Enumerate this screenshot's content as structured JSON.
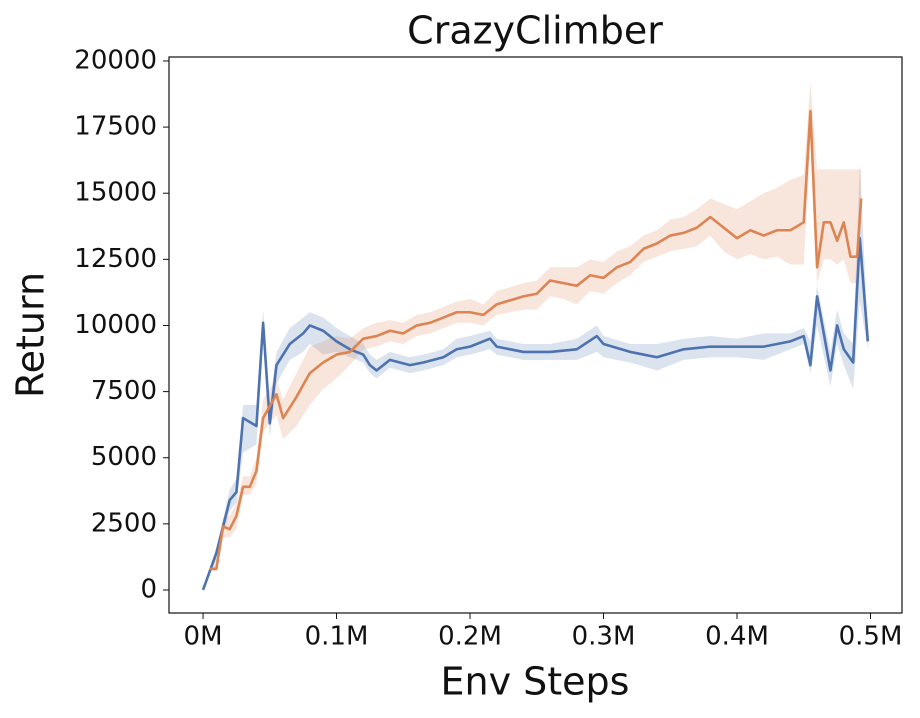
{
  "chart_data": {
    "type": "line",
    "title": "CrazyClimber",
    "x_label": "Env Steps",
    "y_label": "Return",
    "xlim": [
      -25500,
      523600
    ],
    "ylim": [
      -870,
      20150
    ],
    "xticks": [
      {
        "value": 0,
        "label": "0M"
      },
      {
        "value": 100000,
        "label": "0.1M"
      },
      {
        "value": 200000,
        "label": "0.2M"
      },
      {
        "value": 300000,
        "label": "0.3M"
      },
      {
        "value": 400000,
        "label": "0.4M"
      },
      {
        "value": 500000,
        "label": "0.5M"
      }
    ],
    "yticks": [
      0,
      2500,
      5000,
      7500,
      10000,
      12500,
      15000,
      17500,
      20000
    ],
    "grid": false,
    "series": [
      {
        "color": "#4c72b0",
        "x": [
          0,
          10000,
          20000,
          25000,
          30000,
          40000,
          45000,
          50000,
          55000,
          65000,
          75000,
          80000,
          90000,
          100000,
          110000,
          120000,
          125000,
          130000,
          140000,
          155000,
          165000,
          180000,
          190000,
          200000,
          215000,
          220000,
          240000,
          260000,
          280000,
          295000,
          300000,
          320000,
          340000,
          360000,
          380000,
          400000,
          420000,
          440000,
          450000,
          455000,
          460000,
          470000,
          475000,
          480000,
          487000,
          492000,
          498000
        ],
        "values": [
          0,
          1400,
          3400,
          3700,
          6500,
          6200,
          10100,
          6300,
          8500,
          9300,
          9700,
          10000,
          9800,
          9400,
          9100,
          8900,
          8500,
          8300,
          8700,
          8500,
          8600,
          8800,
          9100,
          9200,
          9500,
          9200,
          9000,
          9000,
          9100,
          9600,
          9300,
          9000,
          8800,
          9100,
          9200,
          9200,
          9200,
          9400,
          9600,
          8500,
          11100,
          8300,
          10000,
          9100,
          8600,
          13300,
          9400
        ],
        "lower": [
          0,
          1200,
          3000,
          3300,
          5200,
          5500,
          9500,
          5800,
          7800,
          8700,
          9000,
          9300,
          8900,
          9000,
          8800,
          8600,
          8200,
          8000,
          8400,
          8200,
          8300,
          8500,
          8800,
          8900,
          9100,
          8900,
          8700,
          8700,
          8700,
          9000,
          8800,
          8600,
          8300,
          8700,
          8800,
          8800,
          8700,
          9100,
          9300,
          8200,
          10000,
          7700,
          9300,
          8500,
          7600,
          10900,
          9100
        ],
        "upper": [
          0,
          1600,
          3800,
          4200,
          7000,
          7000,
          10600,
          7000,
          9000,
          9900,
          10300,
          10500,
          10300,
          9900,
          9600,
          9300,
          8900,
          8700,
          9000,
          8800,
          8900,
          9100,
          9500,
          9600,
          9800,
          9500,
          9300,
          9300,
          9500,
          10000,
          9600,
          9300,
          9300,
          9500,
          9600,
          9500,
          9700,
          9700,
          9900,
          9400,
          11500,
          9000,
          10600,
          9700,
          9300,
          16100,
          9700
        ]
      },
      {
        "color": "#dd8452",
        "x": [
          5000,
          10000,
          15000,
          20000,
          25000,
          30000,
          35000,
          40000,
          45000,
          55000,
          60000,
          70000,
          80000,
          90000,
          100000,
          110000,
          120000,
          130000,
          140000,
          150000,
          160000,
          170000,
          180000,
          190000,
          200000,
          210000,
          220000,
          240000,
          250000,
          260000,
          270000,
          280000,
          290000,
          300000,
          310000,
          320000,
          330000,
          340000,
          350000,
          360000,
          370000,
          380000,
          390000,
          400000,
          410000,
          420000,
          430000,
          440000,
          450000,
          455000,
          460000,
          465000,
          470000,
          475000,
          480000,
          485000,
          490000,
          493000
        ],
        "values": [
          800,
          800,
          2400,
          2300,
          2800,
          3900,
          3900,
          4500,
          6500,
          7400,
          6500,
          7300,
          8200,
          8600,
          8900,
          9000,
          9500,
          9600,
          9800,
          9700,
          10000,
          10100,
          10300,
          10500,
          10500,
          10400,
          10800,
          11100,
          11200,
          11700,
          11600,
          11500,
          11900,
          11800,
          12200,
          12400,
          12900,
          13100,
          13400,
          13500,
          13700,
          14100,
          13700,
          13300,
          13600,
          13400,
          13600,
          13600,
          13900,
          18100,
          12200,
          13900,
          13900,
          13200,
          13900,
          12600,
          12600,
          14800
        ],
        "lower": [
          700,
          700,
          2000,
          2000,
          2300,
          3600,
          3600,
          4000,
          6000,
          6600,
          5700,
          6200,
          7000,
          7600,
          8000,
          8500,
          9100,
          9200,
          9400,
          9300,
          9600,
          9700,
          9900,
          10100,
          10100,
          10000,
          10400,
          10600,
          10600,
          11100,
          11000,
          10800,
          11300,
          11200,
          11600,
          11900,
          12400,
          12600,
          12800,
          12900,
          13000,
          13400,
          12800,
          12500,
          12700,
          12500,
          12600,
          12300,
          12300,
          17000,
          11600,
          12500,
          12500,
          12300,
          12500,
          11600,
          11600,
          14000
        ],
        "upper": [
          900,
          1200,
          2700,
          2800,
          3300,
          4300,
          4300,
          5000,
          7200,
          8000,
          7200,
          8200,
          9200,
          9400,
          9600,
          9500,
          9900,
          10100,
          10200,
          10100,
          10400,
          10500,
          10700,
          10900,
          11000,
          10800,
          11300,
          11600,
          11700,
          12200,
          12200,
          12200,
          12500,
          12400,
          12800,
          13000,
          13400,
          13600,
          14000,
          14100,
          14400,
          14800,
          14600,
          14400,
          14700,
          15000,
          15200,
          15500,
          15700,
          19200,
          15900,
          15900,
          15900,
          15900,
          15900,
          15900,
          15900,
          15900
        ]
      }
    ]
  }
}
